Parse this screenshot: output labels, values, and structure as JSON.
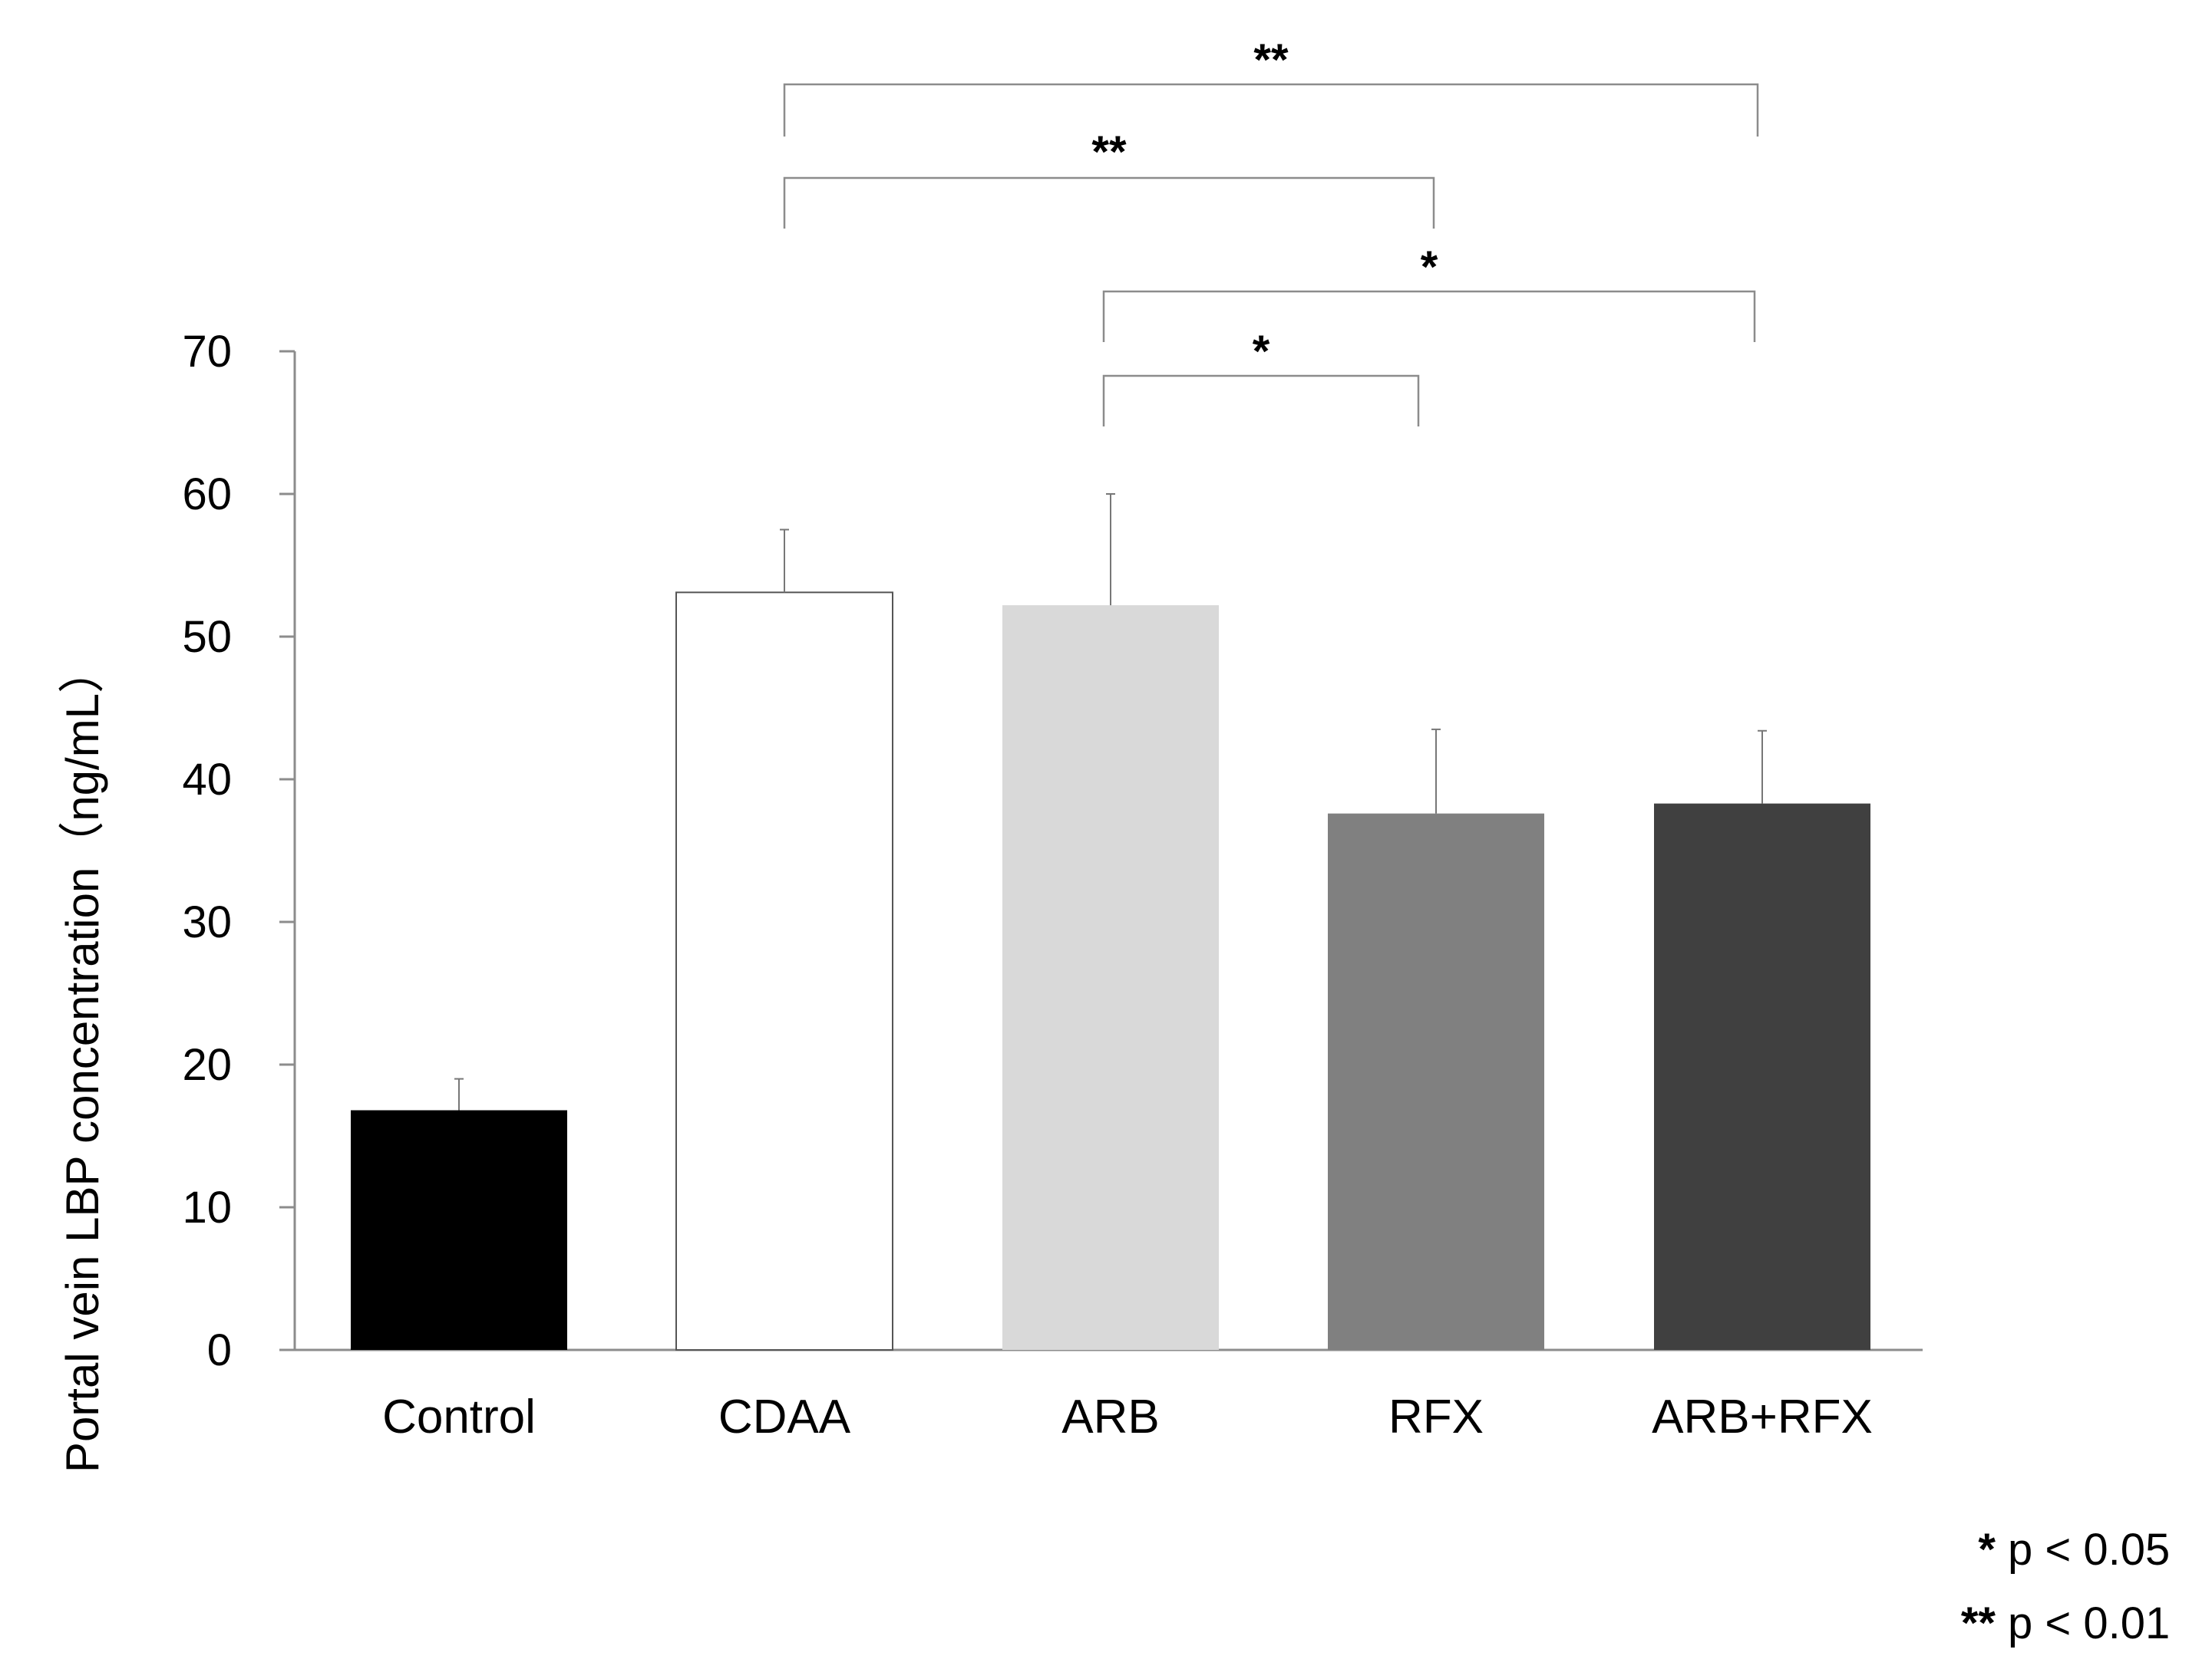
{
  "chart_data": {
    "type": "bar",
    "ylabel": "Portal vein  LBP concentration（ng/mL）",
    "xlabel": "",
    "title": "",
    "ylim": [
      0,
      70
    ],
    "yticks": [
      0,
      10,
      20,
      30,
      40,
      50,
      60,
      70
    ],
    "categories": [
      "Control",
      "CDAA",
      "ARB",
      "RFX",
      "ARB+RFX"
    ],
    "values": [
      16.8,
      53.1,
      52.2,
      37.6,
      38.3
    ],
    "errors": [
      2.2,
      4.4,
      7.8,
      5.9,
      5.1
    ],
    "colors": [
      "#000000",
      "#ffffff",
      "#d9d9d9",
      "#808080",
      "#404040"
    ],
    "significance": [
      {
        "from": "CDAA",
        "to": "ARB+RFX",
        "label": "**"
      },
      {
        "from": "CDAA",
        "to": "RFX",
        "label": "**"
      },
      {
        "from": "ARB",
        "to": "ARB+RFX",
        "label": "*"
      },
      {
        "from": "ARB",
        "to": "RFX",
        "label": "*"
      }
    ],
    "legend": [
      {
        "symbol": "*",
        "text": "p < 0.05"
      },
      {
        "symbol": "**",
        "text": "p < 0.01"
      }
    ]
  }
}
